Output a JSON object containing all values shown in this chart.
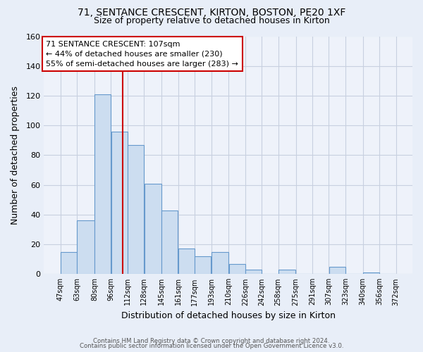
{
  "title1": "71, SENTANCE CRESCENT, KIRTON, BOSTON, PE20 1XF",
  "title2": "Size of property relative to detached houses in Kirton",
  "xlabel": "Distribution of detached houses by size in Kirton",
  "ylabel": "Number of detached properties",
  "bar_left_edges": [
    47,
    63,
    80,
    96,
    112,
    128,
    145,
    161,
    177,
    193,
    210,
    226,
    242,
    258,
    275,
    291,
    307,
    323,
    340,
    356
  ],
  "bar_heights": [
    15,
    36,
    121,
    96,
    87,
    61,
    43,
    17,
    12,
    15,
    7,
    3,
    0,
    3,
    0,
    0,
    5,
    0,
    1,
    0
  ],
  "bar_widths": [
    16,
    17,
    16,
    16,
    16,
    17,
    16,
    16,
    16,
    17,
    16,
    16,
    16,
    17,
    16,
    16,
    16,
    17,
    16,
    16
  ],
  "tick_labels": [
    "47sqm",
    "63sqm",
    "80sqm",
    "96sqm",
    "112sqm",
    "128sqm",
    "145sqm",
    "161sqm",
    "177sqm",
    "193sqm",
    "210sqm",
    "226sqm",
    "242sqm",
    "258sqm",
    "275sqm",
    "291sqm",
    "307sqm",
    "323sqm",
    "340sqm",
    "356sqm",
    "372sqm"
  ],
  "tick_positions": [
    47,
    63,
    80,
    96,
    112,
    128,
    145,
    161,
    177,
    193,
    210,
    226,
    242,
    258,
    275,
    291,
    307,
    323,
    340,
    356,
    372
  ],
  "bar_color": "#ccddf0",
  "bar_edge_color": "#6699cc",
  "vline_x": 107,
  "vline_color": "#cc0000",
  "ylim": [
    0,
    160
  ],
  "xlim": [
    31,
    388
  ],
  "yticks": [
    0,
    20,
    40,
    60,
    80,
    100,
    120,
    140,
    160
  ],
  "annotation_text": "71 SENTANCE CRESCENT: 107sqm\n← 44% of detached houses are smaller (230)\n55% of semi-detached houses are larger (283) →",
  "annotation_box_color": "#ffffff",
  "annotation_box_edge": "#cc0000",
  "footer1": "Contains HM Land Registry data © Crown copyright and database right 2024.",
  "footer2": "Contains public sector information licensed under the Open Government Licence v3.0.",
  "bg_color": "#e8eef8",
  "plot_bg_color": "#eef2fa",
  "grid_color": "#c8d0e0"
}
